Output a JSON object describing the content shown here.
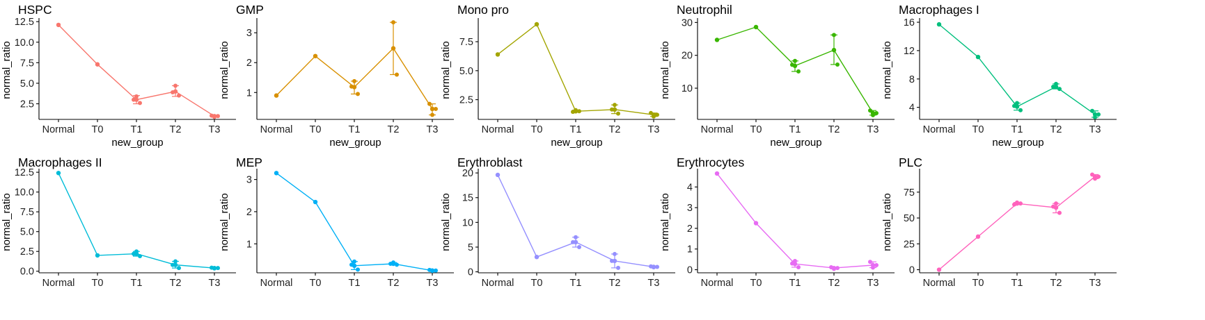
{
  "chart_data": [
    {
      "type": "line",
      "title": "HSPC",
      "xlabel": "new_group",
      "ylabel": "normal_ratio",
      "color": "#F8766D",
      "categories": [
        "Normal",
        "T0",
        "T1",
        "T2",
        "T3"
      ],
      "ylim": [
        0.6,
        12.6
      ],
      "yticks": [
        "2.5",
        "5.0",
        "7.5",
        "10.0",
        "12.5"
      ],
      "means": [
        12.1,
        7.3,
        3.0,
        4.0,
        1.0
      ],
      "lower": [
        12.1,
        7.3,
        2.5,
        3.4,
        0.9
      ],
      "upper": [
        12.1,
        7.3,
        3.5,
        4.7,
        1.1
      ],
      "points": [
        [
          0,
          12.1
        ],
        [
          1,
          7.3
        ],
        [
          2,
          3.4
        ],
        [
          2,
          2.6
        ],
        [
          2,
          3.0
        ],
        [
          3,
          4.7
        ],
        [
          3,
          3.5
        ],
        [
          3,
          3.9
        ],
        [
          4,
          0.9
        ],
        [
          4,
          1.0
        ],
        [
          4,
          1.05
        ]
      ]
    },
    {
      "type": "line",
      "title": "GMP",
      "xlabel": "new_group",
      "ylabel": "normal_ratio",
      "color": "#D89000",
      "categories": [
        "Normal",
        "T0",
        "T1",
        "T2",
        "T3"
      ],
      "ylim": [
        0.1,
        3.4
      ],
      "yticks": [
        "1",
        "2",
        "3"
      ],
      "means": [
        0.9,
        2.22,
        1.18,
        2.48,
        0.45
      ],
      "lower": [
        0.9,
        2.22,
        0.95,
        1.6,
        0.25
      ],
      "upper": [
        0.9,
        2.22,
        1.38,
        3.35,
        0.62
      ],
      "points": [
        [
          0,
          0.9
        ],
        [
          1,
          2.22
        ],
        [
          2,
          1.38
        ],
        [
          2,
          0.95
        ],
        [
          2,
          1.2
        ],
        [
          3,
          3.35
        ],
        [
          3,
          1.6
        ],
        [
          4,
          0.25
        ],
        [
          4,
          0.45
        ],
        [
          4,
          0.62
        ]
      ]
    },
    {
      "type": "line",
      "title": "Mono pro",
      "xlabel": "new_group",
      "ylabel": "normal_ratio",
      "color": "#A3A500",
      "categories": [
        "Normal",
        "T0",
        "T1",
        "T2",
        "T3"
      ],
      "ylim": [
        0.8,
        9.3
      ],
      "yticks": [
        "2.5",
        "5.0",
        "7.5"
      ],
      "means": [
        6.4,
        9.0,
        1.5,
        1.65,
        1.2
      ],
      "lower": [
        6.4,
        9.0,
        1.45,
        1.3,
        1.05
      ],
      "upper": [
        6.4,
        9.0,
        1.6,
        2.05,
        1.35
      ],
      "points": [
        [
          0,
          6.4
        ],
        [
          1,
          9.0
        ],
        [
          2,
          1.6
        ],
        [
          2,
          1.5
        ],
        [
          2,
          1.45
        ],
        [
          3,
          2.05
        ],
        [
          3,
          1.3
        ],
        [
          3,
          1.65
        ],
        [
          4,
          1.05
        ],
        [
          4,
          1.2
        ],
        [
          4,
          1.35
        ]
      ]
    },
    {
      "type": "line",
      "title": "Neutrophil",
      "xlabel": "new_group",
      "ylabel": "normal_ratio",
      "color": "#39B600",
      "categories": [
        "Normal",
        "T0",
        "T1",
        "T2",
        "T3"
      ],
      "ylim": [
        0.5,
        30.5
      ],
      "yticks": [
        "10",
        "20",
        "30"
      ],
      "means": [
        24.7,
        28.6,
        16.8,
        21.6,
        2.4
      ],
      "lower": [
        24.7,
        28.6,
        15.1,
        17.2,
        1.8
      ],
      "upper": [
        24.7,
        28.6,
        18.3,
        26.2,
        3.2
      ],
      "points": [
        [
          0,
          24.7
        ],
        [
          1,
          28.6
        ],
        [
          2,
          18.3
        ],
        [
          2,
          15.1
        ],
        [
          2,
          17.1
        ],
        [
          3,
          26.2
        ],
        [
          3,
          17.2
        ],
        [
          4,
          1.8
        ],
        [
          4,
          2.4
        ],
        [
          4,
          3.2
        ]
      ]
    },
    {
      "type": "line",
      "title": "Macrophages I",
      "xlabel": "new_group",
      "ylabel": "normal_ratio",
      "color": "#00BF7D",
      "categories": [
        "Normal",
        "T0",
        "T1",
        "T2",
        "T3"
      ],
      "ylim": [
        2.3,
        16.2
      ],
      "yticks": [
        "4",
        "8",
        "12",
        "16"
      ],
      "means": [
        15.7,
        11.1,
        4.1,
        6.9,
        3.0
      ],
      "lower": [
        15.7,
        11.1,
        3.6,
        6.6,
        2.6
      ],
      "upper": [
        15.7,
        11.1,
        4.6,
        7.3,
        3.5
      ],
      "points": [
        [
          0,
          15.7
        ],
        [
          1,
          11.1
        ],
        [
          2,
          4.6
        ],
        [
          2,
          3.6
        ],
        [
          2,
          4.2
        ],
        [
          3,
          7.3
        ],
        [
          3,
          6.6
        ],
        [
          3,
          6.9
        ],
        [
          4,
          2.6
        ],
        [
          4,
          3.0
        ],
        [
          4,
          3.5
        ]
      ]
    },
    {
      "type": "line",
      "title": "Macrophages II",
      "xlabel": "",
      "ylabel": "normal_ratio",
      "color": "#00BCD8",
      "categories": [
        "Normal",
        "T0",
        "T1",
        "T2",
        "T3"
      ],
      "ylim": [
        -0.2,
        12.6
      ],
      "yticks": [
        "0.0",
        "2.5",
        "5.0",
        "7.5",
        "10.0",
        "12.5"
      ],
      "means": [
        12.4,
        2.0,
        2.2,
        0.8,
        0.4
      ],
      "lower": [
        12.4,
        2.0,
        1.9,
        0.4,
        0.35
      ],
      "upper": [
        12.4,
        2.0,
        2.5,
        1.25,
        0.45
      ],
      "points": [
        [
          0,
          12.4
        ],
        [
          1,
          2.0
        ],
        [
          2,
          2.5
        ],
        [
          2,
          1.9
        ],
        [
          2,
          2.2
        ],
        [
          3,
          1.25
        ],
        [
          3,
          0.4
        ],
        [
          3,
          0.8
        ],
        [
          4,
          0.35
        ],
        [
          4,
          0.4
        ],
        [
          4,
          0.45
        ]
      ]
    },
    {
      "type": "line",
      "title": "MEP",
      "xlabel": "",
      "ylabel": "normal_ratio",
      "color": "#00B0F6",
      "categories": [
        "Normal",
        "T0",
        "T1",
        "T2",
        "T3"
      ],
      "ylim": [
        0.1,
        3.25
      ],
      "yticks": [
        "1",
        "2",
        "3"
      ],
      "means": [
        3.2,
        2.3,
        0.32,
        0.38,
        0.17
      ],
      "lower": [
        3.2,
        2.3,
        0.2,
        0.35,
        0.16
      ],
      "upper": [
        3.2,
        2.3,
        0.45,
        0.42,
        0.19
      ],
      "points": [
        [
          0,
          3.2
        ],
        [
          1,
          2.3
        ],
        [
          2,
          0.45
        ],
        [
          2,
          0.2
        ],
        [
          2,
          0.35
        ],
        [
          3,
          0.42
        ],
        [
          3,
          0.35
        ],
        [
          3,
          0.38
        ],
        [
          4,
          0.16
        ],
        [
          4,
          0.17
        ],
        [
          4,
          0.19
        ]
      ]
    },
    {
      "type": "line",
      "title": "Erythroblast",
      "xlabel": "",
      "ylabel": "normal_ratio",
      "color": "#9590FF",
      "categories": [
        "Normal",
        "T0",
        "T1",
        "T2",
        "T3"
      ],
      "ylim": [
        -0.2,
        20.3
      ],
      "yticks": [
        "0",
        "5",
        "10",
        "15",
        "20"
      ],
      "means": [
        19.6,
        3.0,
        6.0,
        2.2,
        1.0
      ],
      "lower": [
        19.6,
        3.0,
        5.0,
        0.8,
        0.9
      ],
      "upper": [
        19.6,
        3.0,
        7.0,
        3.6,
        1.1
      ],
      "points": [
        [
          0,
          19.6
        ],
        [
          1,
          3.0
        ],
        [
          2,
          7.0
        ],
        [
          2,
          5.0
        ],
        [
          2,
          6.0
        ],
        [
          3,
          3.6
        ],
        [
          3,
          0.8
        ],
        [
          3,
          2.2
        ],
        [
          4,
          0.9
        ],
        [
          4,
          1.0
        ],
        [
          4,
          1.1
        ]
      ]
    },
    {
      "type": "line",
      "title": "Erythrocytes",
      "xlabel": "",
      "ylabel": "normal_ratio",
      "color": "#E76BF3",
      "categories": [
        "Normal",
        "T0",
        "T1",
        "T2",
        "T3"
      ],
      "ylim": [
        -0.15,
        4.75
      ],
      "yticks": [
        "0",
        "1",
        "2",
        "3",
        "4"
      ],
      "means": [
        4.65,
        2.25,
        0.28,
        0.08,
        0.22
      ],
      "lower": [
        4.65,
        2.25,
        0.12,
        0.04,
        0.1
      ],
      "upper": [
        4.65,
        2.25,
        0.42,
        0.12,
        0.38
      ],
      "points": [
        [
          0,
          4.65
        ],
        [
          1,
          2.25
        ],
        [
          2,
          0.42
        ],
        [
          2,
          0.12
        ],
        [
          2,
          0.3
        ],
        [
          3,
          0.04
        ],
        [
          3,
          0.08
        ],
        [
          3,
          0.12
        ],
        [
          4,
          0.1
        ],
        [
          4,
          0.22
        ],
        [
          4,
          0.38
        ]
      ]
    },
    {
      "type": "line",
      "title": "PLC",
      "xlabel": "",
      "ylabel": "normal_ratio",
      "color": "#FF62BC",
      "categories": [
        "Normal",
        "T0",
        "T1",
        "T2",
        "T3"
      ],
      "ylim": [
        -3,
        95
      ],
      "yticks": [
        "0",
        "25",
        "50",
        "75"
      ],
      "means": [
        0,
        32,
        64,
        60,
        90
      ],
      "lower": [
        0,
        32,
        63,
        55,
        88
      ],
      "upper": [
        0,
        32,
        65,
        64,
        92
      ],
      "points": [
        [
          0,
          0
        ],
        [
          1,
          32
        ],
        [
          2,
          65
        ],
        [
          2,
          64
        ],
        [
          2,
          63
        ],
        [
          3,
          64
        ],
        [
          3,
          55
        ],
        [
          3,
          61
        ],
        [
          4,
          88
        ],
        [
          4,
          90
        ],
        [
          4,
          92
        ]
      ]
    }
  ]
}
